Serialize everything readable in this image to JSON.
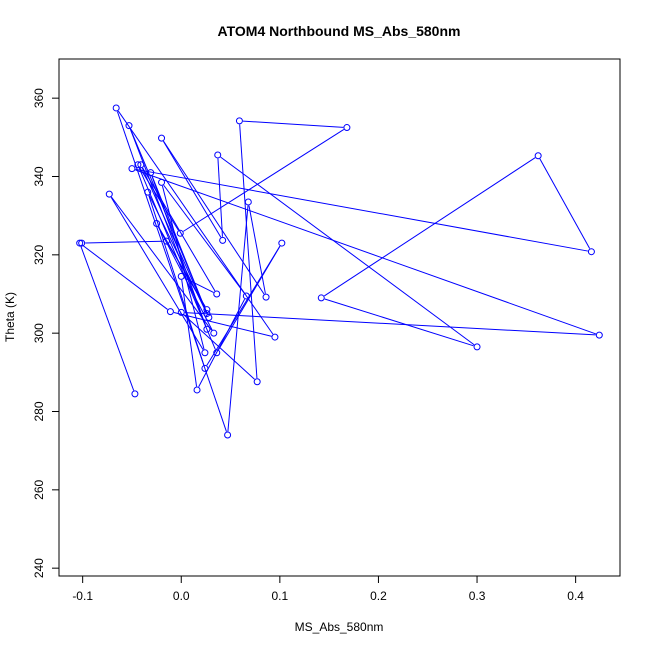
{
  "chart_data": {
    "type": "scatter",
    "title": "ATOM4 Northbound MS_Abs_580nm",
    "xlabel": "MS_Abs_580nm",
    "ylabel": "Theta (K)",
    "xlim": [
      -0.124,
      0.445
    ],
    "ylim": [
      238,
      370
    ],
    "xticks": [
      -0.1,
      0.0,
      0.1,
      0.2,
      0.3,
      0.4
    ],
    "xtick_labels": [
      "-0.1",
      "0.0",
      "0.1",
      "0.2",
      "0.3",
      "0.4"
    ],
    "yticks": [
      240,
      260,
      280,
      300,
      320,
      340,
      360
    ],
    "ytick_labels": [
      "240",
      "260",
      "280",
      "300",
      "320",
      "340",
      "360"
    ],
    "grid": false,
    "connected": true,
    "marker": "open-circle",
    "color": "#0000ff",
    "series": [
      {
        "points": [
          [
            -0.047,
            284.5
          ],
          [
            -0.103,
            323.0
          ],
          [
            -0.011,
            305.5
          ],
          [
            0.095,
            299.0
          ],
          [
            -0.066,
            357.5
          ],
          [
            0.047,
            274.0
          ],
          [
            0.068,
            333.5
          ],
          [
            0.086,
            309.2
          ],
          [
            -0.02,
            349.8
          ],
          [
            0.042,
            323.7
          ],
          [
            0.037,
            345.5
          ],
          [
            0.3,
            296.5
          ],
          [
            0.142,
            309.0
          ],
          [
            0.362,
            345.3
          ],
          [
            0.416,
            320.8
          ],
          [
            -0.05,
            342.0
          ],
          [
            0.424,
            299.5
          ],
          [
            0.0,
            305.3
          ],
          [
            0.077,
            287.6
          ],
          [
            0.059,
            354.2
          ],
          [
            0.168,
            352.5
          ],
          [
            -0.001,
            325.5
          ],
          [
            -0.044,
            343.0
          ],
          [
            0.036,
            295.0
          ],
          [
            0.102,
            323.0
          ],
          [
            0.024,
            291.0
          ],
          [
            -0.034,
            336.0
          ],
          [
            0.026,
            305.0
          ],
          [
            -0.031,
            341.0
          ],
          [
            0.026,
            301.0
          ],
          [
            -0.053,
            353.0
          ],
          [
            0.028,
            304.0
          ],
          [
            -0.041,
            343.0
          ],
          [
            0.036,
            310.0
          ],
          [
            0.0,
            314.5
          ],
          [
            0.016,
            285.5
          ],
          [
            0.066,
            309.5
          ],
          [
            -0.02,
            338.5
          ],
          [
            0.024,
            295.0
          ],
          [
            -0.073,
            335.5
          ],
          [
            0.033,
            300.0
          ],
          [
            -0.025,
            328.0
          ],
          [
            0.026,
            306.0
          ],
          [
            -0.015,
            323.5
          ],
          [
            -0.101,
            323.0
          ]
        ]
      }
    ]
  }
}
